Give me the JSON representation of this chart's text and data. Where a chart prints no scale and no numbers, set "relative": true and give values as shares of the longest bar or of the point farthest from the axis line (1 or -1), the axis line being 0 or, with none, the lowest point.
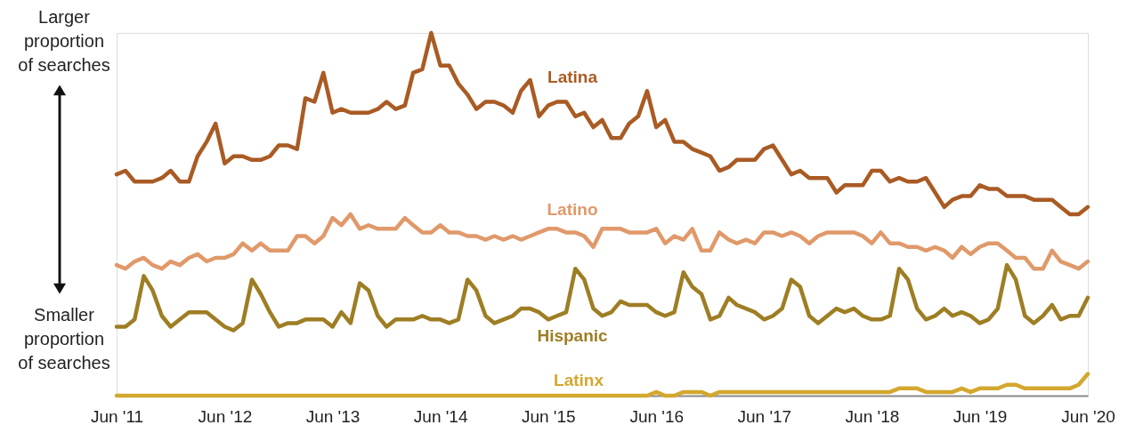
{
  "chart_data": {
    "type": "line",
    "relative": true,
    "x": [
      "2011-06",
      "2011-07",
      "2011-08",
      "2011-09",
      "2011-10",
      "2011-11",
      "2011-12",
      "2012-01",
      "2012-02",
      "2012-03",
      "2012-04",
      "2012-05",
      "2012-06",
      "2012-07",
      "2012-08",
      "2012-09",
      "2012-10",
      "2012-11",
      "2012-12",
      "2013-01",
      "2013-02",
      "2013-03",
      "2013-04",
      "2013-05",
      "2013-06",
      "2013-07",
      "2013-08",
      "2013-09",
      "2013-10",
      "2013-11",
      "2013-12",
      "2014-01",
      "2014-02",
      "2014-03",
      "2014-04",
      "2014-05",
      "2014-06",
      "2014-07",
      "2014-08",
      "2014-09",
      "2014-10",
      "2014-11",
      "2014-12",
      "2015-01",
      "2015-02",
      "2015-03",
      "2015-04",
      "2015-05",
      "2015-06",
      "2015-07",
      "2015-08",
      "2015-09",
      "2015-10",
      "2015-11",
      "2015-12",
      "2016-01",
      "2016-02",
      "2016-03",
      "2016-04",
      "2016-05",
      "2016-06",
      "2016-07",
      "2016-08",
      "2016-09",
      "2016-10",
      "2016-11",
      "2016-12",
      "2017-01",
      "2017-02",
      "2017-03",
      "2017-04",
      "2017-05",
      "2017-06",
      "2017-07",
      "2017-08",
      "2017-09",
      "2017-10",
      "2017-11",
      "2017-12",
      "2018-01",
      "2018-02",
      "2018-03",
      "2018-04",
      "2018-05",
      "2018-06",
      "2018-07",
      "2018-08",
      "2018-09",
      "2018-10",
      "2018-11",
      "2018-12",
      "2019-01",
      "2019-02",
      "2019-03",
      "2019-04",
      "2019-05",
      "2019-06",
      "2019-07",
      "2019-08",
      "2019-09",
      "2019-10",
      "2019-11",
      "2019-12",
      "2020-01",
      "2020-02",
      "2020-03",
      "2020-04",
      "2020-05",
      "2020-06"
    ],
    "xlim": [
      "2011-06",
      "2020-06"
    ],
    "xticks": [
      {
        "value": "2011-06",
        "label": "Jun '11"
      },
      {
        "value": "2012-06",
        "label": "Jun '12"
      },
      {
        "value": "2013-06",
        "label": "Jun '13"
      },
      {
        "value": "2014-06",
        "label": "Jun '14"
      },
      {
        "value": "2015-06",
        "label": "Jun '15"
      },
      {
        "value": "2016-06",
        "label": "Jun '16"
      },
      {
        "value": "2017-06",
        "label": "Jun '17"
      },
      {
        "value": "2018-06",
        "label": "Jun '18"
      },
      {
        "value": "2019-06",
        "label": "Jun '19"
      },
      {
        "value": "2020-06",
        "label": "Jun '20"
      }
    ],
    "series": [
      {
        "name": "Latina",
        "color": "#a95b24",
        "values": [
          0.61,
          0.62,
          0.59,
          0.59,
          0.59,
          0.6,
          0.62,
          0.59,
          0.59,
          0.66,
          0.7,
          0.75,
          0.64,
          0.66,
          0.66,
          0.65,
          0.65,
          0.66,
          0.69,
          0.69,
          0.68,
          0.82,
          0.81,
          0.89,
          0.78,
          0.79,
          0.78,
          0.78,
          0.78,
          0.79,
          0.81,
          0.79,
          0.8,
          0.89,
          0.9,
          1.0,
          0.91,
          0.91,
          0.86,
          0.83,
          0.79,
          0.81,
          0.81,
          0.8,
          0.78,
          0.84,
          0.87,
          0.77,
          0.8,
          0.81,
          0.81,
          0.77,
          0.78,
          0.74,
          0.76,
          0.71,
          0.71,
          0.75,
          0.77,
          0.84,
          0.74,
          0.76,
          0.7,
          0.7,
          0.68,
          0.67,
          0.66,
          0.62,
          0.63,
          0.65,
          0.65,
          0.65,
          0.68,
          0.69,
          0.65,
          0.61,
          0.62,
          0.6,
          0.6,
          0.6,
          0.56,
          0.58,
          0.58,
          0.58,
          0.62,
          0.62,
          0.59,
          0.6,
          0.59,
          0.59,
          0.6,
          0.56,
          0.52,
          0.54,
          0.55,
          0.55,
          0.58,
          0.57,
          0.57,
          0.55,
          0.55,
          0.55,
          0.54,
          0.54,
          0.54,
          0.52,
          0.5,
          0.5,
          0.52
        ]
      },
      {
        "name": "Latino",
        "color": "#e0996a",
        "values": [
          0.36,
          0.35,
          0.37,
          0.38,
          0.36,
          0.35,
          0.37,
          0.36,
          0.38,
          0.39,
          0.37,
          0.38,
          0.38,
          0.39,
          0.42,
          0.4,
          0.42,
          0.4,
          0.4,
          0.4,
          0.44,
          0.44,
          0.42,
          0.44,
          0.49,
          0.47,
          0.5,
          0.46,
          0.47,
          0.46,
          0.46,
          0.46,
          0.49,
          0.47,
          0.45,
          0.45,
          0.47,
          0.45,
          0.45,
          0.44,
          0.44,
          0.43,
          0.44,
          0.43,
          0.44,
          0.43,
          0.44,
          0.45,
          0.46,
          0.46,
          0.45,
          0.45,
          0.44,
          0.41,
          0.46,
          0.46,
          0.46,
          0.45,
          0.45,
          0.45,
          0.46,
          0.42,
          0.44,
          0.43,
          0.46,
          0.4,
          0.4,
          0.45,
          0.43,
          0.42,
          0.43,
          0.42,
          0.45,
          0.45,
          0.44,
          0.45,
          0.44,
          0.42,
          0.44,
          0.45,
          0.45,
          0.45,
          0.45,
          0.44,
          0.42,
          0.45,
          0.42,
          0.42,
          0.41,
          0.41,
          0.4,
          0.41,
          0.4,
          0.38,
          0.41,
          0.39,
          0.41,
          0.42,
          0.42,
          0.4,
          0.38,
          0.38,
          0.35,
          0.35,
          0.4,
          0.37,
          0.36,
          0.35,
          0.37
        ]
      },
      {
        "name": "Hispanic",
        "color": "#9e7e24",
        "values": [
          0.19,
          0.19,
          0.21,
          0.33,
          0.29,
          0.22,
          0.19,
          0.21,
          0.23,
          0.23,
          0.23,
          0.21,
          0.19,
          0.18,
          0.2,
          0.32,
          0.28,
          0.23,
          0.19,
          0.2,
          0.2,
          0.21,
          0.21,
          0.21,
          0.19,
          0.23,
          0.2,
          0.31,
          0.29,
          0.22,
          0.19,
          0.21,
          0.21,
          0.21,
          0.22,
          0.21,
          0.21,
          0.2,
          0.21,
          0.32,
          0.29,
          0.22,
          0.2,
          0.21,
          0.22,
          0.24,
          0.24,
          0.23,
          0.21,
          0.22,
          0.23,
          0.35,
          0.32,
          0.24,
          0.22,
          0.23,
          0.26,
          0.25,
          0.25,
          0.25,
          0.23,
          0.22,
          0.23,
          0.34,
          0.3,
          0.28,
          0.21,
          0.22,
          0.27,
          0.25,
          0.24,
          0.23,
          0.21,
          0.22,
          0.24,
          0.32,
          0.3,
          0.22,
          0.2,
          0.22,
          0.24,
          0.23,
          0.24,
          0.22,
          0.21,
          0.21,
          0.22,
          0.35,
          0.32,
          0.24,
          0.21,
          0.22,
          0.24,
          0.22,
          0.23,
          0.22,
          0.2,
          0.21,
          0.24,
          0.36,
          0.32,
          0.22,
          0.2,
          0.22,
          0.25,
          0.21,
          0.22,
          0.22,
          0.27
        ]
      },
      {
        "name": "Latinx",
        "color": "#d3a82e",
        "values": [
          0,
          0,
          0,
          0,
          0,
          0,
          0,
          0,
          0,
          0,
          0,
          0,
          0,
          0,
          0,
          0,
          0,
          0,
          0,
          0,
          0,
          0,
          0,
          0,
          0,
          0,
          0,
          0,
          0,
          0,
          0,
          0,
          0,
          0,
          0,
          0,
          0,
          0,
          0,
          0,
          0,
          0,
          0,
          0,
          0,
          0,
          0,
          0,
          0,
          0,
          0,
          0,
          0,
          0,
          0,
          0,
          0,
          0,
          0,
          0,
          0.01,
          0,
          0,
          0.01,
          0.01,
          0.01,
          0,
          0.01,
          0.01,
          0.01,
          0.01,
          0.01,
          0.01,
          0.01,
          0.01,
          0.01,
          0.01,
          0.01,
          0.01,
          0.01,
          0.01,
          0.01,
          0.01,
          0.01,
          0.01,
          0.01,
          0.01,
          0.02,
          0.02,
          0.02,
          0.01,
          0.01,
          0.01,
          0.01,
          0.02,
          0.01,
          0.02,
          0.02,
          0.02,
          0.03,
          0.03,
          0.02,
          0.02,
          0.02,
          0.02,
          0.02,
          0.02,
          0.03,
          0.06
        ]
      }
    ],
    "annotations": [
      "Larger proportion of searches",
      "Smaller proportion of searches"
    ],
    "grid": false,
    "legend": false,
    "tick_labels": "x"
  }
}
